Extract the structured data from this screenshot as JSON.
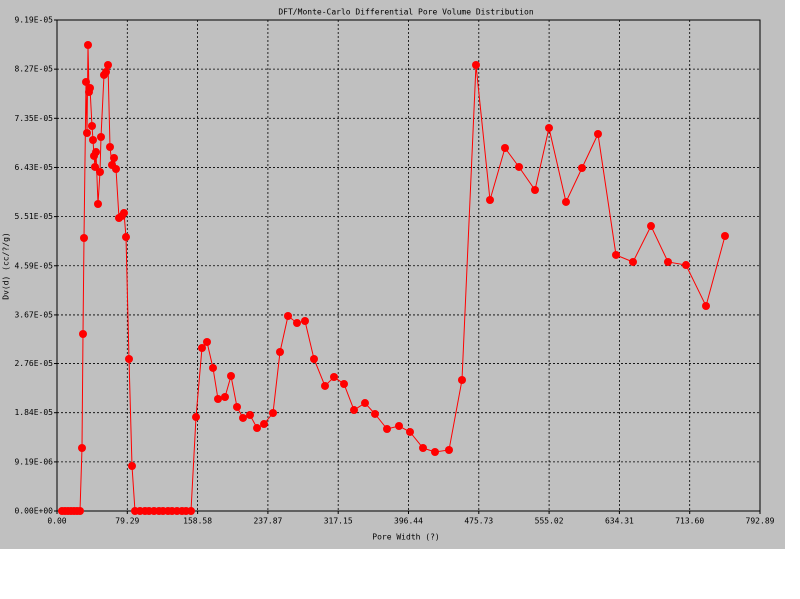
{
  "chart_data": {
    "type": "line",
    "title": "DFT/Monte-Carlo Differential Pore Volume Distribution",
    "x_label": "Pore Width (?)",
    "y_label": "Dv(d) (cc/?/g)",
    "color": "#ff0000",
    "grid": true,
    "xlim": [
      0,
      792.89
    ],
    "ylim": [
      0,
      9.19e-05
    ],
    "xticks": [
      {
        "value": 0,
        "label": "0.00"
      },
      79.29,
      158.58,
      237.87,
      317.15,
      {
        "value": 396.44,
        "label": "396.44"
      },
      {
        "value": 475.73,
        "label": "475.73"
      },
      555.02,
      {
        "value": 634.31,
        "label": "634.31"
      },
      {
        "value": 713.6,
        "label": "713.60"
      },
      792.89
    ],
    "yticks": [
      {
        "value": 0,
        "label": "0.00E+00"
      },
      {
        "value": 9.19e-06,
        "label": "9.19E-06"
      },
      {
        "value": 1.84e-05,
        "label": "1.84E-05"
      },
      {
        "value": 2.76e-05,
        "label": "2.76E-05"
      },
      {
        "value": 3.67e-05,
        "label": "3.67E-05"
      },
      {
        "value": 4.59e-05,
        "label": "4.59E-05"
      },
      {
        "value": 5.51e-05,
        "label": "5.51E-05"
      },
      {
        "value": 6.43e-05,
        "label": "6.43E-05"
      },
      {
        "value": 7.35e-05,
        "label": "7.35E-05"
      },
      {
        "value": 8.27e-05,
        "label": "8.27E-05"
      },
      {
        "value": 9.19e-05,
        "label": "9.19E-05"
      }
    ],
    "x": [
      5.64,
      9.02,
      12.41,
      15.79,
      19.17,
      22.56,
      25.94,
      28.2,
      29.32,
      30.45,
      32.71,
      33.84,
      34.96,
      36.09,
      37.22,
      39.47,
      40.6,
      41.73,
      42.86,
      43.99,
      46.24,
      48.5,
      49.63,
      53.01,
      55.27,
      57.52,
      59.78,
      62.04,
      64.29,
      66.54,
      69.93,
      73.31,
      75.57,
      77.82,
      81.21,
      84.59,
      87.97,
      93.61,
      99.25,
      103.76,
      109.4,
      115.04,
      119.55,
      125.19,
      129.7,
      135.34,
      140.98,
      145.49,
      151.13,
      156.77,
      163.54,
      169.18,
      175.94,
      181.58,
      189.48,
      196.25,
      203.01,
      209.78,
      217.68,
      225.57,
      233.47,
      243.62,
      251.51,
      260.53,
      270.68,
      279.71,
      289.86,
      302.26,
      312.41,
      323.69,
      334.97,
      347.38,
      358.66,
      372.19,
      385.72,
      398.13,
      412.79,
      426.33,
      442.12,
      456.78,
      472.57,
      488.36,
      505.28,
      521.07,
      539.11,
      554.9,
      574.07,
      592.12,
      610.16,
      630.47,
      649.64,
      669.94,
      689.11,
      709.42,
      731.98,
      753.4
    ],
    "values": [
      0,
      0,
      0,
      0,
      0,
      0,
      0,
      1.179e-05,
      3.313e-05,
      5.11e-05,
      8.03e-05,
      7.075e-05,
      8.722e-05,
      7.842e-05,
      7.917e-05,
      7.206e-05,
      6.944e-05,
      6.645e-05,
      6.439e-05,
      6.719e-05,
      5.746e-05,
      6.345e-05,
      7e-05,
      8.161e-05,
      8.217e-05,
      8.348e-05,
      6.813e-05,
      6.476e-05,
      6.607e-05,
      6.401e-05,
      5.484e-05,
      5.522e-05,
      5.578e-05,
      5.128e-05,
      2.845e-05,
      8.42e-06,
      0,
      0,
      0,
      0,
      0,
      0,
      0,
      0,
      0,
      0,
      0,
      0,
      0,
      1.759e-05,
      3.051e-05,
      3.163e-05,
      2.677e-05,
      2.096e-05,
      2.134e-05,
      2.527e-05,
      1.947e-05,
      1.741e-05,
      1.797e-05,
      1.553e-05,
      1.628e-05,
      1.834e-05,
      2.976e-05,
      3.65e-05,
      3.519e-05,
      3.556e-05,
      2.845e-05,
      2.34e-05,
      2.508e-05,
      2.377e-05,
      1.89e-05,
      2.021e-05,
      1.816e-05,
      1.535e-05,
      1.591e-05,
      1.479e-05,
      1.179e-05,
      1.104e-05,
      1.142e-05,
      2.452e-05,
      8.348e-05,
      5.821e-05,
      6.794e-05,
      6.439e-05,
      6.008e-05,
      7.169e-05,
      5.784e-05,
      6.42e-05,
      7.056e-05,
      4.792e-05,
      4.661e-05,
      5.334e-05,
      4.661e-05,
      4.604e-05,
      3.837e-05,
      5.147e-05
    ]
  }
}
